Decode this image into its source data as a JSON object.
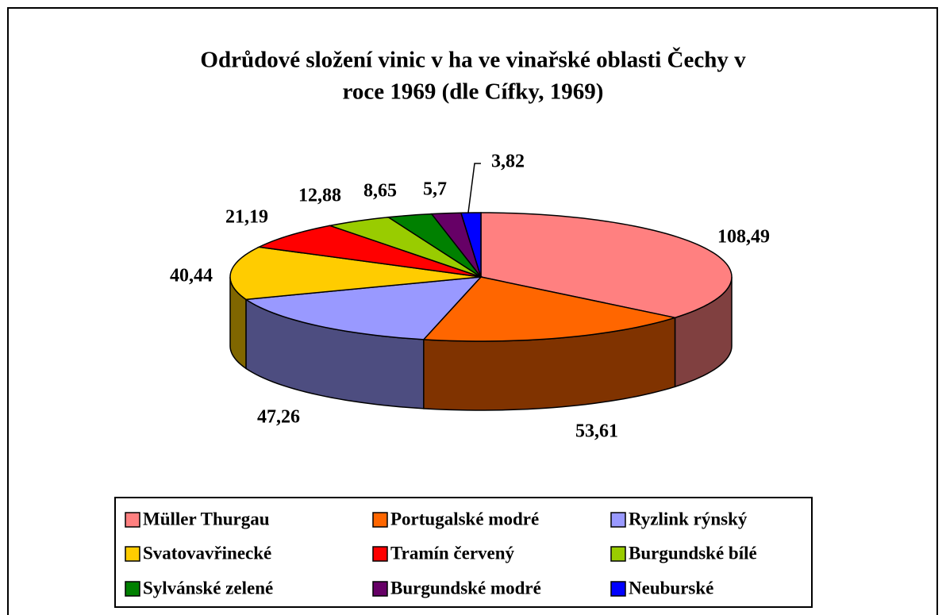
{
  "chart_data": {
    "type": "pie",
    "title": [
      "Odrůdové složení vinic v ha ve vinařské oblasti Čechy v",
      "roce 1969 (dle Cífky, 1969)"
    ],
    "categories": [
      "Müller Thurgau",
      "Portugalské modré",
      "Ryzlink rýnský",
      "Svatovavřinecké",
      "Tramín červený",
      "Burgundské bílé",
      "Sylvánské zelené",
      "Burgundské modré",
      "Neuburské"
    ],
    "values": [
      108.49,
      53.61,
      47.26,
      40.44,
      21.19,
      12.88,
      8.65,
      5.7,
      3.82
    ],
    "value_labels": [
      "108,49",
      "53,61",
      "47,26",
      "40,44",
      "21,19",
      "12,88",
      "8,65",
      "5,7",
      "3,82"
    ],
    "colors": [
      "#FF8080",
      "#FF6600",
      "#9999FF",
      "#FFCC00",
      "#FF0000",
      "#99CC00",
      "#008000",
      "#660066",
      "#0000FF"
    ],
    "legend": "bottom"
  }
}
